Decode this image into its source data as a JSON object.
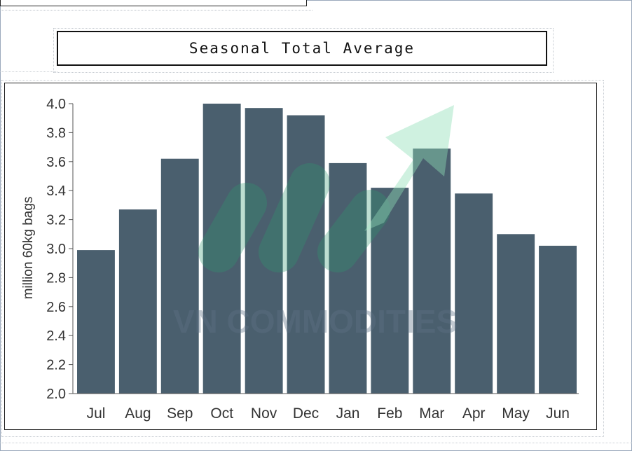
{
  "header": {
    "title": "Seasonal Total Average"
  },
  "watermark": {
    "text": "VN COMMODITIES"
  },
  "colors": {
    "bar": "#4a5f6e",
    "watermark_green": "#2f9a6f",
    "watermark_text": "#5f7387"
  },
  "chart_data": {
    "type": "bar",
    "title": "Seasonal Total Average",
    "xlabel": "",
    "ylabel": "million 60kg bags",
    "categories": [
      "Jul",
      "Aug",
      "Sep",
      "Oct",
      "Nov",
      "Dec",
      "Jan",
      "Feb",
      "Mar",
      "Apr",
      "May",
      "Jun"
    ],
    "values": [
      2.99,
      3.27,
      3.62,
      4.0,
      3.97,
      3.92,
      3.59,
      3.42,
      3.69,
      3.38,
      3.1,
      3.02
    ],
    "ylim": [
      2.0,
      4.0
    ],
    "yticks": [
      "2.0",
      "2.2",
      "2.4",
      "2.6",
      "2.8",
      "3.0",
      "3.2",
      "3.4",
      "3.6",
      "3.8",
      "4.0"
    ],
    "grid": false,
    "legend": "none"
  }
}
